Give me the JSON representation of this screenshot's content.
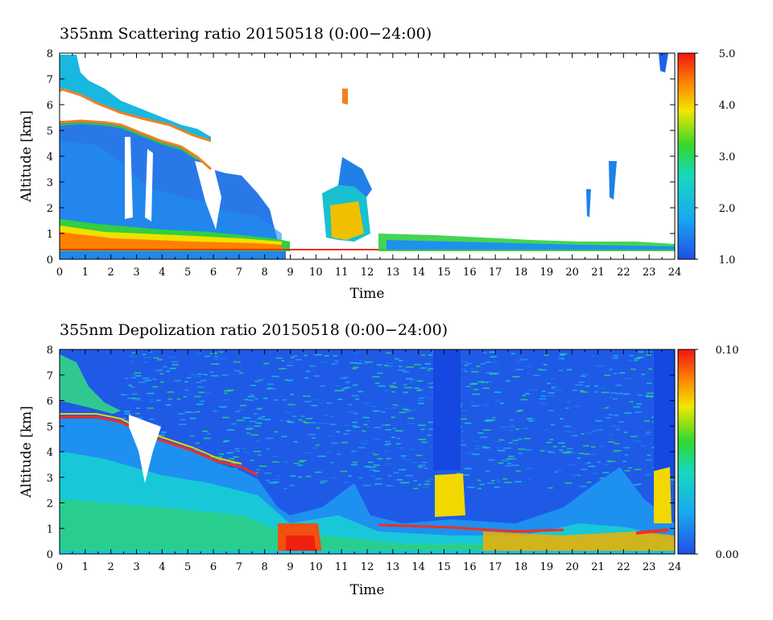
{
  "chart_data": [
    {
      "type": "heatmap",
      "title": "355nm Scattering ratio  20150518 (0:00−24:00)",
      "xlabel": "Time",
      "ylabel": "Altitude [km]",
      "xlim": [
        0,
        24
      ],
      "ylim": [
        0,
        8
      ],
      "x_ticks": [
        "0",
        "1",
        "2",
        "3",
        "4",
        "5",
        "6",
        "7",
        "8",
        "9",
        "10",
        "11",
        "12",
        "13",
        "14",
        "15",
        "16",
        "17",
        "18",
        "19",
        "20",
        "21",
        "22",
        "23",
        "24"
      ],
      "y_ticks": [
        "0",
        "1",
        "2",
        "3",
        "4",
        "5",
        "6",
        "7",
        "8"
      ],
      "colorbar": {
        "min": 1.0,
        "max": 5.0,
        "tick_labels": [
          "1.0",
          "2.0",
          "3.0",
          "4.0",
          "5.0"
        ],
        "tick_values": [
          1.0,
          2.0,
          3.0,
          4.0,
          5.0
        ]
      }
    },
    {
      "type": "heatmap",
      "title": "355nm Depolization ratio  20150518 (0:00−24:00)",
      "xlabel": "Time",
      "ylabel": "Altitude [km]",
      "xlim": [
        0,
        24
      ],
      "ylim": [
        0,
        8
      ],
      "x_ticks": [
        "0",
        "1",
        "2",
        "3",
        "4",
        "5",
        "6",
        "7",
        "8",
        "9",
        "10",
        "11",
        "12",
        "13",
        "14",
        "15",
        "16",
        "17",
        "18",
        "19",
        "20",
        "21",
        "22",
        "23",
        "24"
      ],
      "y_ticks": [
        "0",
        "1",
        "2",
        "3",
        "4",
        "5",
        "6",
        "7",
        "8"
      ],
      "colorbar": {
        "min": 0.0,
        "max": 0.1,
        "tick_labels": [
          "0.00",
          "0.10"
        ],
        "tick_values": [
          0.0,
          0.1
        ]
      }
    }
  ]
}
